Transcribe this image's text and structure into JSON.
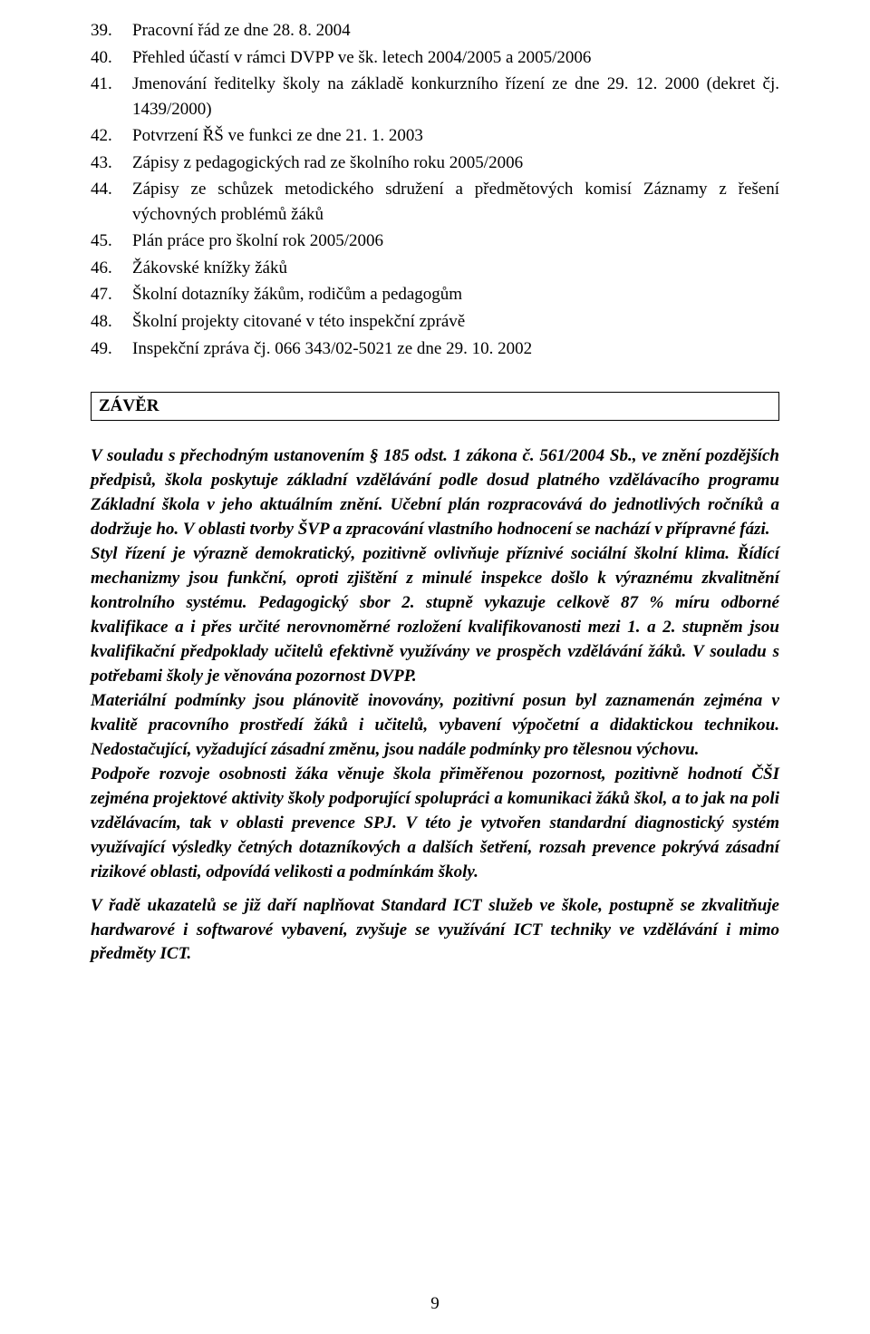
{
  "list": {
    "items": [
      {
        "num": "39.",
        "text": "Pracovní řád ze dne 28. 8. 2004"
      },
      {
        "num": "40.",
        "text": "Přehled účastí v rámci DVPP ve šk. letech 2004/2005 a 2005/2006"
      },
      {
        "num": "41.",
        "text": "Jmenování ředitelky školy na základě konkurzního řízení ze dne 29. 12. 2000 (dekret čj. 1439/2000)"
      },
      {
        "num": "42.",
        "text": "Potvrzení ŘŠ ve funkci ze dne 21. 1. 2003"
      },
      {
        "num": "43.",
        "text": "Zápisy z pedagogických rad ze školního roku 2005/2006"
      },
      {
        "num": "44.",
        "text": "Zápisy ze schůzek metodického sdružení a předmětových komisí Záznamy z řešení výchovných problémů žáků"
      },
      {
        "num": "45.",
        "text": "Plán práce pro školní rok 2005/2006"
      },
      {
        "num": "46.",
        "text": "Žákovské knížky žáků"
      },
      {
        "num": "47.",
        "text": "Školní dotazníky žákům, rodičům a pedagogům"
      },
      {
        "num": "48.",
        "text": "Školní projekty citované v této inspekční zprávě"
      },
      {
        "num": "49.",
        "text": "Inspekční zpráva čj. 066 343/02-5021 ze dne 29. 10. 2002"
      }
    ]
  },
  "section": {
    "title": "ZÁVĚR"
  },
  "body": {
    "p1": "V souladu s přechodným ustanovením § 185 odst. 1 zákona č. 561/2004 Sb., ve znění pozdějších předpisů, škola poskytuje základní vzdělávání podle dosud platného vzdělávacího programu Základní škola v jeho aktuálním znění. Učební plán rozpracovává do jednotlivých ročníků a dodržuje ho. V oblasti tvorby ŠVP a zpracování vlastního hodnocení se nachází v přípravné fázi.",
    "p2": "Styl řízení je výrazně demokratický, pozitivně ovlivňuje příznivé sociální školní klima. Řídící mechanizmy jsou funkční, oproti zjištění z minulé inspekce došlo k výraznému zkvalitnění kontrolního systému. Pedagogický sbor 2. stupně vykazuje celkově 87 % míru odborné kvalifikace a i přes určité nerovnoměrné rozložení kvalifikovanosti mezi 1. a 2. stupněm jsou kvalifikační předpoklady učitelů efektivně využívány ve prospěch vzdělávání žáků. V souladu s potřebami školy je věnována pozornost DVPP.",
    "p3": "Materiální podmínky jsou plánovitě inovovány, pozitivní posun byl zaznamenán zejména v kvalitě pracovního prostředí žáků i učitelů, vybavení výpočetní a didaktickou technikou. Nedostačující, vyžadující zásadní změnu, jsou nadále podmínky pro tělesnou výchovu.",
    "p4": "Podpoře rozvoje osobnosti žáka věnuje škola přiměřenou pozornost, pozitivně hodnotí ČŠI zejména projektové aktivity školy podporující spolupráci a komunikaci žáků škol, a to jak na poli vzdělávacím, tak v oblasti prevence SPJ. V této je vytvořen standardní diagnostický systém využívající výsledky četných dotazníkových a dalších šetření, rozsah prevence pokrývá zásadní rizikové oblasti, odpovídá velikosti a podmínkám školy.",
    "p5": "V řadě ukazatelů se již daří naplňovat Standard ICT služeb ve škole, postupně se zkvalitňuje hardwarové i softwarové vybavení, zvyšuje se využívání ICT techniky ve vzdělávání i mimo předměty ICT."
  },
  "pageNumber": "9"
}
